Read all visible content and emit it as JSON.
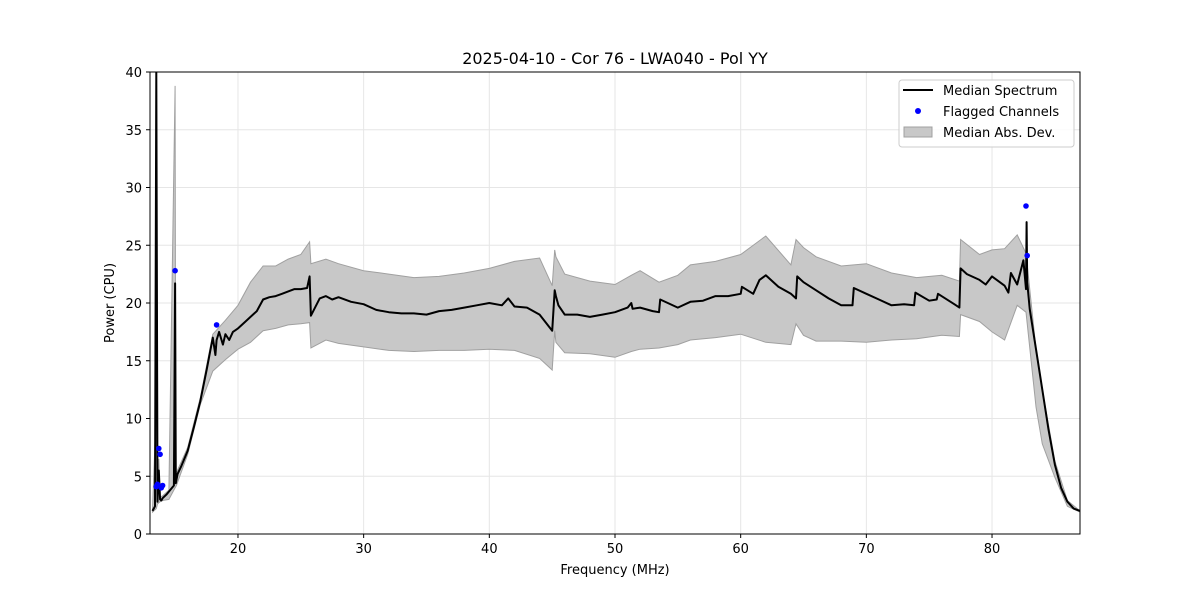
{
  "chart_data": {
    "type": "line",
    "title": "2025-04-10 - Cor 76 - LWA040 - Pol YY",
    "xlabel": "Frequency (MHz)",
    "ylabel": "Power (CPU)",
    "xlim": [
      13,
      87
    ],
    "ylim": [
      0,
      40
    ],
    "xticks": [
      20,
      30,
      40,
      50,
      60,
      70,
      80
    ],
    "yticks": [
      0,
      5,
      10,
      15,
      20,
      25,
      30,
      35,
      40
    ],
    "grid": true,
    "legend_position": "top-right",
    "colors": {
      "median": "#000000",
      "flagged": "#0000ff",
      "mad_fill": "#c8c8c8",
      "mad_edge": "#a0a0a0"
    },
    "series": [
      {
        "name": "Median Spectrum",
        "kind": "line",
        "x": [
          13.2,
          13.4,
          13.5,
          13.6,
          13.7,
          13.8,
          13.9,
          14.0,
          14.3,
          14.6,
          14.9,
          15.0,
          15.05,
          15.2,
          15.5,
          16.0,
          16.5,
          17.0,
          17.5,
          18.0,
          18.2,
          18.3,
          18.5,
          18.8,
          19.0,
          19.3,
          19.6,
          20.0,
          20.5,
          21.0,
          21.5,
          22.0,
          22.5,
          23.0,
          23.5,
          24.0,
          24.5,
          25.0,
          25.5,
          25.7,
          25.8,
          26.5,
          27.0,
          27.5,
          28.0,
          29.0,
          30.0,
          31.0,
          32.0,
          33.0,
          34.0,
          35.0,
          36.0,
          37.0,
          38.0,
          39.0,
          40.0,
          41.0,
          41.5,
          42.0,
          43.0,
          44.0,
          45.0,
          45.2,
          45.3,
          45.5,
          46.0,
          47.0,
          48.0,
          49.0,
          50.0,
          51.0,
          51.3,
          51.4,
          52.0,
          53.0,
          53.5,
          53.6,
          55.0,
          56.0,
          57.0,
          58.0,
          59.0,
          60.0,
          60.1,
          61.0,
          61.5,
          62.0,
          63.0,
          64.0,
          64.4,
          64.5,
          65.0,
          66.0,
          67.0,
          68.0,
          68.9,
          69.0,
          70.0,
          71.0,
          72.0,
          73.0,
          73.8,
          73.9,
          75.0,
          75.6,
          75.7,
          77.0,
          77.4,
          77.5,
          78.0,
          79.0,
          79.5,
          80.0,
          81.0,
          81.3,
          81.5,
          82.0,
          82.5,
          82.7,
          82.75,
          82.8,
          83.0,
          83.5,
          84.0,
          84.5,
          85.0,
          85.5,
          86.0,
          86.5,
          87.0
        ],
        "values": [
          2.0,
          2.4,
          40.0,
          2.8,
          5.5,
          3.0,
          2.9,
          3.1,
          3.4,
          3.8,
          4.2,
          21.7,
          4.4,
          5.2,
          5.9,
          7.2,
          9.3,
          11.5,
          14.2,
          17.0,
          15.5,
          16.8,
          17.5,
          16.4,
          17.3,
          16.8,
          17.5,
          17.8,
          18.3,
          18.8,
          19.3,
          20.3,
          20.5,
          20.6,
          20.8,
          21.0,
          21.2,
          21.2,
          21.3,
          22.3,
          18.9,
          20.4,
          20.6,
          20.3,
          20.5,
          20.1,
          19.9,
          19.4,
          19.2,
          19.1,
          19.1,
          19.0,
          19.3,
          19.4,
          19.6,
          19.8,
          20.0,
          19.8,
          20.4,
          19.7,
          19.6,
          19.0,
          17.6,
          21.1,
          20.6,
          19.8,
          19.0,
          19.0,
          18.8,
          19.0,
          19.2,
          19.6,
          20.0,
          19.5,
          19.6,
          19.3,
          19.2,
          20.3,
          19.6,
          20.1,
          20.2,
          20.6,
          20.6,
          20.8,
          21.4,
          20.8,
          22.0,
          22.4,
          21.4,
          20.8,
          20.4,
          22.3,
          21.8,
          21.1,
          20.4,
          19.8,
          19.8,
          21.3,
          20.8,
          20.3,
          19.8,
          19.9,
          19.8,
          20.9,
          20.2,
          20.3,
          20.8,
          19.9,
          19.6,
          23.0,
          22.5,
          22.0,
          21.6,
          22.3,
          21.5,
          20.9,
          22.6,
          21.6,
          23.7,
          21.2,
          27.0,
          21.8,
          19.5,
          16.0,
          12.5,
          9.0,
          6.0,
          4.0,
          2.8,
          2.2,
          2.0
        ]
      },
      {
        "name": "Flagged Channels",
        "kind": "scatter",
        "x": [
          13.5,
          13.6,
          13.7,
          13.8,
          13.9,
          14.0,
          15.0,
          18.3,
          82.7,
          82.8
        ],
        "values": [
          4.1,
          4.3,
          7.4,
          6.9,
          4.0,
          4.2,
          22.8,
          18.1,
          28.4,
          24.1
        ]
      },
      {
        "name": "Median Abs. Dev.",
        "kind": "band",
        "x": [
          13.2,
          13.5,
          13.6,
          13.7,
          13.8,
          14.0,
          14.5,
          15.0,
          15.05,
          15.1,
          16.0,
          17.0,
          18.0,
          19.0,
          20.0,
          21.0,
          22.0,
          23.0,
          24.0,
          25.0,
          25.7,
          25.8,
          27.0,
          28.0,
          30.0,
          32.0,
          34.0,
          36.0,
          38.0,
          40.0,
          42.0,
          44.0,
          45.0,
          45.2,
          45.3,
          46.0,
          48.0,
          50.0,
          51.3,
          52.0,
          53.5,
          55.0,
          56.0,
          58.0,
          60.0,
          62.0,
          64.0,
          64.4,
          65.0,
          66.0,
          68.0,
          70.0,
          72.0,
          74.0,
          76.0,
          77.4,
          77.5,
          79.0,
          80.0,
          81.0,
          82.0,
          82.7,
          83.5,
          84.0,
          85.0,
          86.0,
          87.0
        ],
        "upper": [
          2.1,
          11.0,
          3.2,
          6.5,
          3.2,
          3.3,
          3.8,
          38.8,
          4.8,
          5.3,
          7.5,
          11.8,
          17.3,
          18.5,
          19.8,
          21.8,
          23.2,
          23.2,
          23.8,
          24.2,
          25.3,
          23.4,
          23.8,
          23.4,
          22.8,
          22.5,
          22.2,
          22.3,
          22.6,
          23.0,
          23.6,
          23.9,
          21.5,
          24.6,
          24.0,
          22.5,
          21.9,
          21.6,
          22.4,
          22.8,
          21.8,
          22.4,
          23.3,
          23.6,
          24.2,
          25.8,
          23.3,
          25.5,
          24.8,
          24.0,
          23.2,
          23.4,
          22.6,
          22.2,
          22.4,
          21.9,
          25.5,
          24.2,
          24.6,
          24.7,
          25.9,
          24.3,
          16.0,
          12.5,
          6.3,
          2.9,
          2.0
        ],
        "lower": [
          1.9,
          2.2,
          2.6,
          2.7,
          2.8,
          2.9,
          3.0,
          4.0,
          4.1,
          4.2,
          6.9,
          11.2,
          14.1,
          15.1,
          16.0,
          16.6,
          17.6,
          17.8,
          18.1,
          18.2,
          18.3,
          16.1,
          16.8,
          16.5,
          16.2,
          15.9,
          15.8,
          15.9,
          15.9,
          16.0,
          15.9,
          15.2,
          14.2,
          17.6,
          16.6,
          15.7,
          15.6,
          15.3,
          15.8,
          16.0,
          16.1,
          16.4,
          16.8,
          17.0,
          17.3,
          16.6,
          16.4,
          18.2,
          17.2,
          16.7,
          16.7,
          16.6,
          16.8,
          16.9,
          17.2,
          17.1,
          19.0,
          18.4,
          17.5,
          16.8,
          19.8,
          19.2,
          11.0,
          7.8,
          4.9,
          2.4,
          1.9
        ]
      }
    ]
  }
}
